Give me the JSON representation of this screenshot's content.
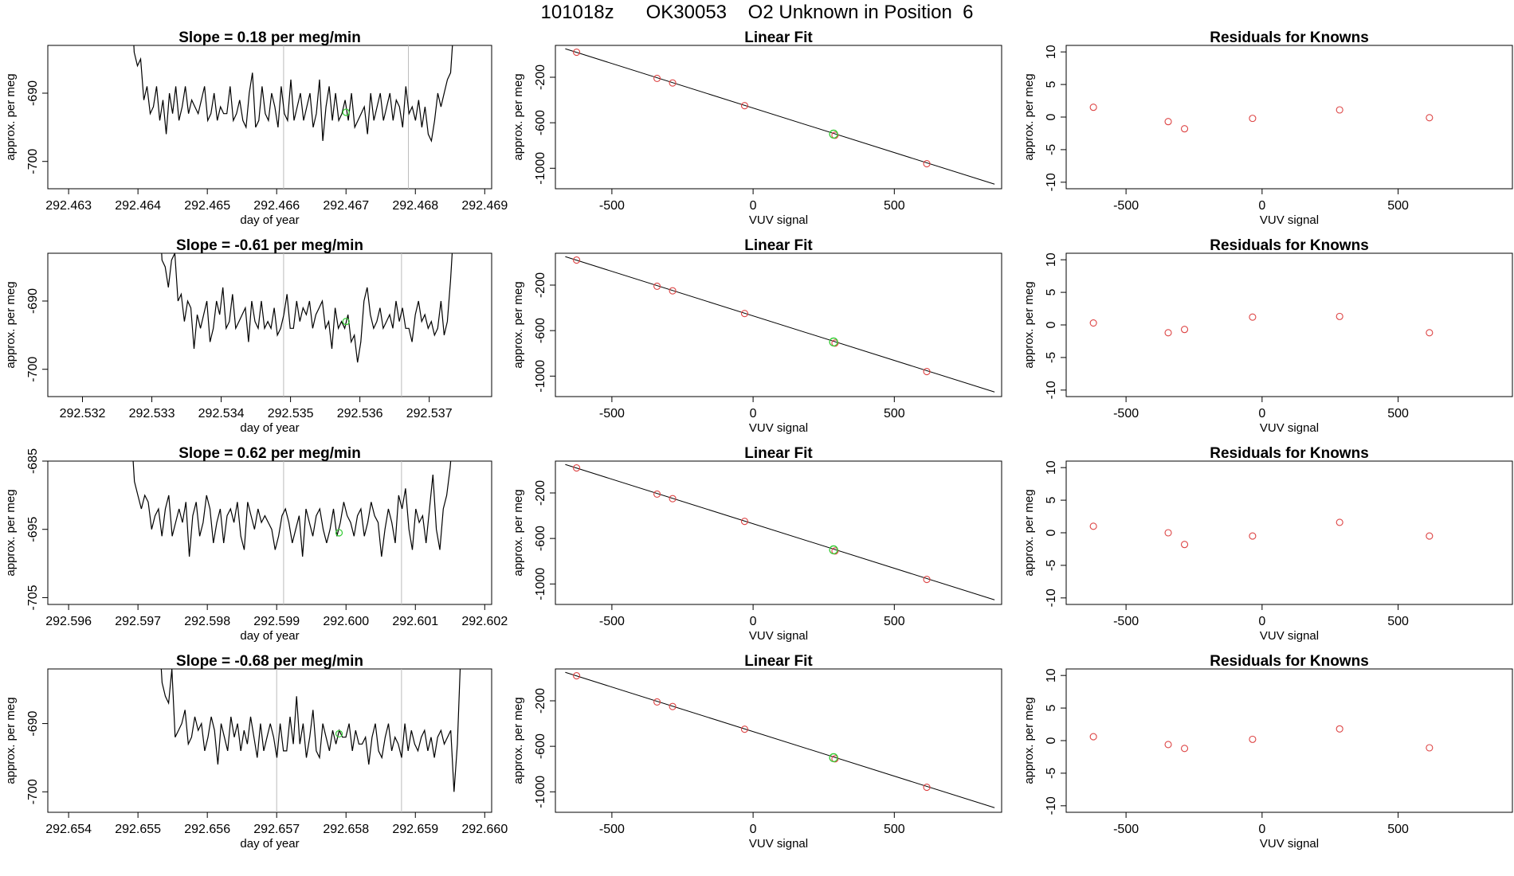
{
  "page_title": "101018z      OK30053    O2 Unknown in Position  6",
  "colors": {
    "line": "#000000",
    "known_point": "#dd4444",
    "unknown_point": "#33cc33",
    "guide_line": "#bbbbbb",
    "frame": "#000000"
  },
  "chart_data": [
    {
      "row": 1,
      "panel": "time-series",
      "type": "line",
      "title": "Slope =  0.18  per meg/min",
      "xlabel": "day of year",
      "ylabel": "approx. per meg",
      "x_ticks": [
        "292.463",
        "292.464",
        "292.465",
        "292.466",
        "292.467",
        "292.468",
        "292.469"
      ],
      "x_tick_values": [
        292.463,
        292.464,
        292.465,
        292.466,
        292.467,
        292.468,
        292.469
      ],
      "xlim": [
        292.4627,
        292.4691
      ],
      "y_ticks": [
        "-690",
        "-700"
      ],
      "y_tick_values": [
        -690,
        -700
      ],
      "ylim": [
        -704,
        -683
      ],
      "x_start": 292.4639,
      "x_end": 292.4686,
      "series": [
        -675,
        -684,
        -686,
        -685,
        -691,
        -689,
        -693,
        -692,
        -689,
        -694,
        -691,
        -696,
        -690,
        -693,
        -689,
        -694,
        -692,
        -689,
        -693,
        -691,
        -692,
        -693,
        -691,
        -689,
        -694,
        -693,
        -690,
        -694,
        -692,
        -693,
        -693,
        -689,
        -694,
        -693,
        -691,
        -694,
        -695,
        -690,
        -687,
        -695,
        -694,
        -689,
        -693,
        -694,
        -690,
        -692,
        -695,
        -689,
        -693,
        -694,
        -688,
        -694,
        -692,
        -690,
        -694,
        -692,
        -690,
        -695,
        -693,
        -688,
        -697,
        -692,
        -689,
        -694,
        -690,
        -694,
        -693,
        -691,
        -694,
        -690,
        -695,
        -694,
        -693,
        -692,
        -696,
        -690,
        -694,
        -692,
        -690,
        -694,
        -692,
        -690,
        -694,
        -691,
        -692,
        -695,
        -689,
        -693,
        -692,
        -694,
        -691,
        -695,
        -692,
        -696,
        -697,
        -694,
        -690,
        -692,
        -690,
        -688,
        -687,
        -680,
        -672
      ],
      "guide_lines_x": [
        292.4661,
        292.4679
      ],
      "unknown_point": {
        "x": 292.467,
        "y": -692.8
      }
    },
    {
      "row": 1,
      "panel": "linear-fit",
      "type": "scatter",
      "title": "Linear Fit",
      "xlabel": "VUV signal",
      "ylabel": "approx. per meg",
      "x_ticks": [
        "-500",
        "0",
        "500"
      ],
      "x_tick_values": [
        -500,
        0,
        500
      ],
      "xlim": [
        -700,
        880
      ],
      "y_ticks": [
        "-200",
        "-600",
        "-1000"
      ],
      "y_tick_values": [
        -200,
        -600,
        -1000
      ],
      "ylim": [
        -1180,
        80
      ],
      "fit_line": {
        "x": [
          -665,
          855
        ],
        "y": [
          50,
          -1140
        ]
      },
      "known_points": {
        "x": [
          -625,
          -340,
          -285,
          -30,
          290,
          615
        ],
        "y": [
          20,
          -210,
          -250,
          -450,
          -710,
          -960
        ]
      },
      "unknown_point": {
        "x": 285,
        "y": -700
      }
    },
    {
      "row": 1,
      "panel": "residuals",
      "type": "scatter",
      "title": "Residuals for Knowns",
      "xlabel": "VUV signal",
      "ylabel": "approx. per meg",
      "x_ticks": [
        "-500",
        "0",
        "500"
      ],
      "x_tick_values": [
        -500,
        0,
        500
      ],
      "xlim": [
        -720,
        920
      ],
      "y_ticks": [
        "10",
        "5",
        "0",
        "-5",
        "-10"
      ],
      "y_tick_values": [
        10,
        5,
        0,
        -5,
        -10
      ],
      "ylim": [
        -11,
        11
      ],
      "residuals": {
        "x": [
          -620,
          -345,
          -285,
          -35,
          285,
          615
        ],
        "y": [
          1.5,
          -0.7,
          -1.8,
          -0.2,
          1.1,
          -0.1
        ]
      }
    },
    {
      "row": 2,
      "panel": "time-series",
      "type": "line",
      "title": "Slope =  -0.61  per meg/min",
      "xlabel": "day of year",
      "ylabel": "approx. per meg",
      "x_ticks": [
        "292.532",
        "292.533",
        "292.534",
        "292.535",
        "292.536",
        "292.537"
      ],
      "x_tick_values": [
        292.532,
        292.533,
        292.534,
        292.535,
        292.536,
        292.537
      ],
      "xlim": [
        292.5315,
        292.5379
      ],
      "y_ticks": [
        "-690",
        "-700"
      ],
      "y_tick_values": [
        -690,
        -700
      ],
      "ylim": [
        -704,
        -683
      ],
      "x_start": 292.5331,
      "x_end": 292.5374,
      "series": [
        -675,
        -684,
        -685,
        -688,
        -684,
        -683,
        -690,
        -689,
        -693,
        -690,
        -691,
        -697,
        -692,
        -694,
        -692,
        -690,
        -696,
        -694,
        -690,
        -692,
        -688,
        -694,
        -693,
        -689,
        -694,
        -693,
        -692,
        -691,
        -696,
        -690,
        -693,
        -694,
        -690,
        -694,
        -693,
        -694,
        -691,
        -695,
        -694,
        -692,
        -689,
        -694,
        -694,
        -690,
        -693,
        -691,
        -692,
        -690,
        -694,
        -692,
        -691,
        -690,
        -694,
        -693,
        -697,
        -691,
        -694,
        -693,
        -694,
        -692,
        -696,
        -695,
        -699,
        -696,
        -690,
        -688,
        -692,
        -694,
        -693,
        -691,
        -694,
        -693,
        -692,
        -694,
        -690,
        -693,
        -691,
        -694,
        -694,
        -696,
        -692,
        -690,
        -693,
        -692,
        -694,
        -693,
        -695,
        -694,
        -690,
        -695,
        -693,
        -687,
        -679,
        -672
      ],
      "guide_lines_x": [
        292.5349,
        292.5366
      ],
      "unknown_point": {
        "x": 292.5358,
        "y": -693
      }
    },
    {
      "row": 2,
      "panel": "linear-fit",
      "type": "scatter",
      "title": "Linear Fit",
      "xlabel": "VUV signal",
      "ylabel": "approx. per meg",
      "x_ticks": [
        "-500",
        "0",
        "500"
      ],
      "x_tick_values": [
        -500,
        0,
        500
      ],
      "xlim": [
        -700,
        880
      ],
      "y_ticks": [
        "-200",
        "-600",
        "-1000"
      ],
      "y_tick_values": [
        -200,
        -600,
        -1000
      ],
      "ylim": [
        -1180,
        80
      ],
      "fit_line": {
        "x": [
          -665,
          855
        ],
        "y": [
          50,
          -1140
        ]
      },
      "known_points": {
        "x": [
          -625,
          -340,
          -285,
          -30,
          290,
          615
        ],
        "y": [
          20,
          -210,
          -250,
          -450,
          -710,
          -960
        ]
      },
      "unknown_point": {
        "x": 285,
        "y": -700
      }
    },
    {
      "row": 2,
      "panel": "residuals",
      "type": "scatter",
      "title": "Residuals for Knowns",
      "xlabel": "VUV signal",
      "ylabel": "approx. per meg",
      "x_ticks": [
        "-500",
        "0",
        "500"
      ],
      "x_tick_values": [
        -500,
        0,
        500
      ],
      "xlim": [
        -720,
        920
      ],
      "y_ticks": [
        "10",
        "5",
        "0",
        "-5",
        "-10"
      ],
      "y_tick_values": [
        10,
        5,
        0,
        -5,
        -10
      ],
      "ylim": [
        -11,
        11
      ],
      "residuals": {
        "x": [
          -620,
          -345,
          -285,
          -35,
          285,
          615
        ],
        "y": [
          0.3,
          -1.2,
          -0.7,
          1.2,
          1.3,
          -1.2
        ]
      }
    },
    {
      "row": 3,
      "panel": "time-series",
      "type": "line",
      "title": "Slope =  0.62  per meg/min",
      "xlabel": "day of year",
      "ylabel": "approx. per meg",
      "x_ticks": [
        "292.596",
        "292.597",
        "292.598",
        "292.599",
        "292.600",
        "292.601",
        "292.602"
      ],
      "x_tick_values": [
        292.596,
        292.597,
        292.598,
        292.599,
        292.6,
        292.601,
        292.602
      ],
      "xlim": [
        292.5957,
        292.6021
      ],
      "y_ticks": [
        "-685",
        "-695",
        "-705"
      ],
      "y_tick_values": [
        -685,
        -695,
        -705
      ],
      "ylim": [
        -706,
        -685
      ],
      "x_start": 292.5969,
      "x_end": 292.6016,
      "series": [
        -680,
        -688,
        -690,
        -692,
        -690,
        -691,
        -695,
        -693,
        -692,
        -696,
        -692,
        -690,
        -696,
        -694,
        -692,
        -694,
        -691,
        -699,
        -693,
        -691,
        -696,
        -694,
        -690,
        -692,
        -697,
        -694,
        -692,
        -697,
        -693,
        -692,
        -694,
        -691,
        -696,
        -698,
        -691,
        -693,
        -695,
        -692,
        -694,
        -693,
        -694,
        -695,
        -698,
        -696,
        -693,
        -692,
        -694,
        -697,
        -695,
        -693,
        -699,
        -692,
        -694,
        -696,
        -693,
        -692,
        -695,
        -697,
        -695,
        -692,
        -696,
        -694,
        -691,
        -693,
        -694,
        -696,
        -693,
        -692,
        -696,
        -694,
        -691,
        -693,
        -694,
        -699,
        -695,
        -692,
        -694,
        -697,
        -690,
        -692,
        -689,
        -695,
        -698,
        -692,
        -694,
        -693,
        -697,
        -692,
        -687,
        -695,
        -698,
        -692,
        -690,
        -686,
        -680,
        -674
      ],
      "guide_lines_x": [
        292.5991,
        292.6008
      ],
      "unknown_point": {
        "x": 292.5999,
        "y": -695.5
      }
    },
    {
      "row": 3,
      "panel": "linear-fit",
      "type": "scatter",
      "title": "Linear Fit",
      "xlabel": "VUV signal",
      "ylabel": "approx. per meg",
      "x_ticks": [
        "-500",
        "0",
        "500"
      ],
      "x_tick_values": [
        -500,
        0,
        500
      ],
      "xlim": [
        -700,
        880
      ],
      "y_ticks": [
        "-200",
        "-600",
        "-1000"
      ],
      "y_tick_values": [
        -200,
        -600,
        -1000
      ],
      "ylim": [
        -1180,
        80
      ],
      "fit_line": {
        "x": [
          -665,
          855
        ],
        "y": [
          50,
          -1140
        ]
      },
      "known_points": {
        "x": [
          -625,
          -340,
          -285,
          -30,
          290,
          615
        ],
        "y": [
          20,
          -210,
          -250,
          -450,
          -710,
          -960
        ]
      },
      "unknown_point": {
        "x": 285,
        "y": -700
      }
    },
    {
      "row": 3,
      "panel": "residuals",
      "type": "scatter",
      "title": "Residuals for Knowns",
      "xlabel": "VUV signal",
      "ylabel": "approx. per meg",
      "x_ticks": [
        "-500",
        "0",
        "500"
      ],
      "x_tick_values": [
        -500,
        0,
        500
      ],
      "xlim": [
        -720,
        920
      ],
      "y_ticks": [
        "10",
        "5",
        "0",
        "-5",
        "-10"
      ],
      "y_tick_values": [
        10,
        5,
        0,
        -5,
        -10
      ],
      "ylim": [
        -11,
        11
      ],
      "residuals": {
        "x": [
          -620,
          -345,
          -285,
          -35,
          285,
          615
        ],
        "y": [
          1.0,
          0.0,
          -1.8,
          -0.5,
          1.6,
          -0.5
        ]
      }
    },
    {
      "row": 4,
      "panel": "time-series",
      "type": "line",
      "title": "Slope =  -0.68  per meg/min",
      "xlabel": "day of year",
      "ylabel": "approx. per meg",
      "x_ticks": [
        "292.654",
        "292.655",
        "292.656",
        "292.657",
        "292.658",
        "292.659",
        "292.660"
      ],
      "x_tick_values": [
        292.654,
        292.655,
        292.656,
        292.657,
        292.658,
        292.659,
        292.66
      ],
      "xlim": [
        292.6537,
        292.6601
      ],
      "y_ticks": [
        "-690",
        "-700"
      ],
      "y_tick_values": [
        -690,
        -700
      ],
      "ylim": [
        -703,
        -682
      ],
      "x_start": 292.6553,
      "x_end": 292.6597,
      "series": [
        -676,
        -684,
        -686,
        -687,
        -682,
        -692,
        -691,
        -690,
        -688,
        -693,
        -692,
        -689,
        -691,
        -690,
        -694,
        -692,
        -689,
        -691,
        -696,
        -690,
        -692,
        -694,
        -689,
        -692,
        -690,
        -694,
        -691,
        -693,
        -689,
        -692,
        -695,
        -690,
        -694,
        -692,
        -690,
        -692,
        -695,
        -690,
        -694,
        -694,
        -689,
        -693,
        -686,
        -693,
        -690,
        -695,
        -692,
        -688,
        -694,
        -695,
        -690,
        -692,
        -694,
        -691,
        -693,
        -691,
        -692,
        -692,
        -690,
        -694,
        -691,
        -693,
        -693,
        -692,
        -696,
        -692,
        -690,
        -694,
        -695,
        -692,
        -690,
        -694,
        -692,
        -693,
        -695,
        -690,
        -694,
        -691,
        -693,
        -694,
        -692,
        -691,
        -694,
        -692,
        -695,
        -692,
        -691,
        -693,
        -692,
        -691,
        -700,
        -693,
        -680,
        -670
      ],
      "guide_lines_x": [
        292.657,
        292.6588
      ],
      "unknown_point": {
        "x": 292.6579,
        "y": -691.5
      }
    },
    {
      "row": 4,
      "panel": "linear-fit",
      "type": "scatter",
      "title": "Linear Fit",
      "xlabel": "VUV signal",
      "ylabel": "approx. per meg",
      "x_ticks": [
        "-500",
        "0",
        "500"
      ],
      "x_tick_values": [
        -500,
        0,
        500
      ],
      "xlim": [
        -700,
        880
      ],
      "y_ticks": [
        "-200",
        "-600",
        "-1000"
      ],
      "y_tick_values": [
        -200,
        -600,
        -1000
      ],
      "ylim": [
        -1180,
        80
      ],
      "fit_line": {
        "x": [
          -665,
          855
        ],
        "y": [
          50,
          -1140
        ]
      },
      "known_points": {
        "x": [
          -625,
          -340,
          -285,
          -30,
          290,
          615
        ],
        "y": [
          20,
          -210,
          -250,
          -450,
          -710,
          -960
        ]
      },
      "unknown_point": {
        "x": 285,
        "y": -700
      }
    },
    {
      "row": 4,
      "panel": "residuals",
      "type": "scatter",
      "title": "Residuals for Knowns",
      "xlabel": "VUV signal",
      "ylabel": "approx. per meg",
      "x_ticks": [
        "-500",
        "0",
        "500"
      ],
      "x_tick_values": [
        -500,
        0,
        500
      ],
      "xlim": [
        -720,
        920
      ],
      "y_ticks": [
        "10",
        "5",
        "0",
        "-5",
        "-10"
      ],
      "y_tick_values": [
        10,
        5,
        0,
        -5,
        -10
      ],
      "ylim": [
        -11,
        11
      ],
      "residuals": {
        "x": [
          -620,
          -345,
          -285,
          -35,
          285,
          615
        ],
        "y": [
          0.6,
          -0.6,
          -1.2,
          0.2,
          1.8,
          -1.1
        ]
      }
    }
  ]
}
